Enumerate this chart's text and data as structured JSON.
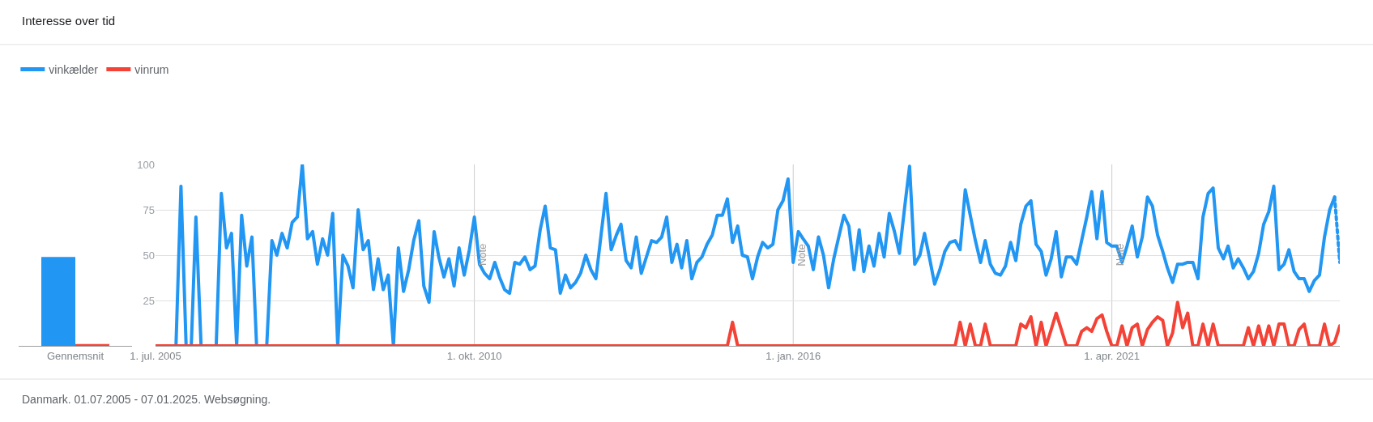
{
  "chart_data": [
    {
      "type": "bar",
      "title": "Interesse over tid",
      "categories": [
        "Gennemsnit"
      ],
      "ylim": [
        0,
        100
      ],
      "tick_labels": "x",
      "series": [
        {
          "color": "#2196f3",
          "values": [
            49
          ]
        },
        {
          "color": "#f44336",
          "values": [
            1
          ]
        }
      ]
    },
    {
      "type": "line",
      "legend": "top left",
      "grid": "y",
      "annotations": [
        "Danmark. 01.07.2005 - 07.01.2025. Websøgning."
      ],
      "xlim": [
        "2005-07-01",
        "2025-01-01"
      ],
      "ylim": [
        0,
        100
      ],
      "yticks": [
        25,
        50,
        75,
        100
      ],
      "xticks": [
        {
          "value": "2005-07-01",
          "label": "1. jul. 2005"
        },
        {
          "value": "2010-10-01",
          "label": "1. okt. 2010"
        },
        {
          "value": "2016-01-01",
          "label": "1. jan. 2016"
        },
        {
          "value": "2021-04-01",
          "label": "1. apr. 2021"
        }
      ],
      "ref_lines": [
        {
          "axis": "x",
          "value": "2010-10-01",
          "label": "Note",
          "color": "#cccccc"
        },
        {
          "axis": "x",
          "value": "2016-01-01",
          "label": "Note",
          "color": "#cccccc"
        },
        {
          "axis": "x",
          "value": "2021-04-01",
          "label": "Note",
          "color": "#cccccc"
        }
      ],
      "x": [
        "2005-07",
        "2005-08",
        "2005-09",
        "2005-10",
        "2005-11",
        "2005-12",
        "2006-01",
        "2006-02",
        "2006-03",
        "2006-04",
        "2006-05",
        "2006-06",
        "2006-07",
        "2006-08",
        "2006-09",
        "2006-10",
        "2006-11",
        "2006-12",
        "2007-01",
        "2007-02",
        "2007-03",
        "2007-04",
        "2007-05",
        "2007-06",
        "2007-07",
        "2007-08",
        "2007-09",
        "2007-10",
        "2007-11",
        "2007-12",
        "2008-01",
        "2008-02",
        "2008-03",
        "2008-04",
        "2008-05",
        "2008-06",
        "2008-07",
        "2008-08",
        "2008-09",
        "2008-10",
        "2008-11",
        "2008-12",
        "2009-01",
        "2009-02",
        "2009-03",
        "2009-04",
        "2009-05",
        "2009-06",
        "2009-07",
        "2009-08",
        "2009-09",
        "2009-10",
        "2009-11",
        "2009-12",
        "2010-01",
        "2010-02",
        "2010-03",
        "2010-04",
        "2010-05",
        "2010-06",
        "2010-07",
        "2010-08",
        "2010-09",
        "2010-10",
        "2010-11",
        "2010-12",
        "2011-01",
        "2011-02",
        "2011-03",
        "2011-04",
        "2011-05",
        "2011-06",
        "2011-07",
        "2011-08",
        "2011-09",
        "2011-10",
        "2011-11",
        "2011-12",
        "2012-01",
        "2012-02",
        "2012-03",
        "2012-04",
        "2012-05",
        "2012-06",
        "2012-07",
        "2012-08",
        "2012-09",
        "2012-10",
        "2012-11",
        "2012-12",
        "2013-01",
        "2013-02",
        "2013-03",
        "2013-04",
        "2013-05",
        "2013-06",
        "2013-07",
        "2013-08",
        "2013-09",
        "2013-10",
        "2013-11",
        "2013-12",
        "2014-01",
        "2014-02",
        "2014-03",
        "2014-04",
        "2014-05",
        "2014-06",
        "2014-07",
        "2014-08",
        "2014-09",
        "2014-10",
        "2014-11",
        "2014-12",
        "2015-01",
        "2015-02",
        "2015-03",
        "2015-04",
        "2015-05",
        "2015-06",
        "2015-07",
        "2015-08",
        "2015-09",
        "2015-10",
        "2015-11",
        "2015-12",
        "2016-01",
        "2016-02",
        "2016-03",
        "2016-04",
        "2016-05",
        "2016-06",
        "2016-07",
        "2016-08",
        "2016-09",
        "2016-10",
        "2016-11",
        "2016-12",
        "2017-01",
        "2017-02",
        "2017-03",
        "2017-04",
        "2017-05",
        "2017-06",
        "2017-07",
        "2017-08",
        "2017-09",
        "2017-10",
        "2017-11",
        "2017-12",
        "2018-01",
        "2018-02",
        "2018-03",
        "2018-04",
        "2018-05",
        "2018-06",
        "2018-07",
        "2018-08",
        "2018-09",
        "2018-10",
        "2018-11",
        "2018-12",
        "2019-01",
        "2019-02",
        "2019-03",
        "2019-04",
        "2019-05",
        "2019-06",
        "2019-07",
        "2019-08",
        "2019-09",
        "2019-10",
        "2019-11",
        "2019-12",
        "2020-01",
        "2020-02",
        "2020-03",
        "2020-04",
        "2020-05",
        "2020-06",
        "2020-07",
        "2020-08",
        "2020-09",
        "2020-10",
        "2020-11",
        "2020-12",
        "2021-01",
        "2021-02",
        "2021-03",
        "2021-04",
        "2021-05",
        "2021-06",
        "2021-07",
        "2021-08",
        "2021-09",
        "2021-10",
        "2021-11",
        "2021-12",
        "2022-01",
        "2022-02",
        "2022-03",
        "2022-04",
        "2022-05",
        "2022-06",
        "2022-07",
        "2022-08",
        "2022-09",
        "2022-10",
        "2022-11",
        "2022-12",
        "2023-01",
        "2023-02",
        "2023-03",
        "2023-04",
        "2023-05",
        "2023-06",
        "2023-07",
        "2023-08",
        "2023-09",
        "2023-10",
        "2023-11",
        "2023-12",
        "2024-01",
        "2024-02",
        "2024-03",
        "2024-04",
        "2024-05",
        "2024-06",
        "2024-07",
        "2024-08",
        "2024-09",
        "2024-10",
        "2024-11",
        "2024-12",
        "2025-01"
      ],
      "series": [
        {
          "name": "vinkælder",
          "color": "#2196f3",
          "values": [
            null,
            null,
            null,
            null,
            0,
            88,
            0,
            0,
            71,
            0,
            0,
            0,
            0,
            84,
            54,
            62,
            0,
            72,
            44,
            60,
            0,
            0,
            0,
            58,
            50,
            62,
            54,
            68,
            71,
            100,
            59,
            63,
            45,
            59,
            50,
            73,
            0,
            50,
            44,
            32,
            75,
            53,
            58,
            31,
            48,
            31,
            39,
            0,
            54,
            30,
            42,
            58,
            69,
            33,
            24,
            63,
            49,
            38,
            48,
            33,
            54,
            39,
            53,
            71,
            45,
            40,
            37,
            46,
            38,
            31,
            29,
            46,
            45,
            49,
            42,
            44,
            64,
            77,
            54,
            53,
            29,
            39,
            32,
            35,
            40,
            50,
            42,
            37,
            61,
            84,
            53,
            61,
            67,
            47,
            43,
            60,
            40,
            49,
            58,
            57,
            60,
            71,
            46,
            56,
            43,
            58,
            37,
            46,
            49,
            56,
            61,
            72,
            72,
            81,
            57,
            66,
            50,
            49,
            37,
            49,
            57,
            54,
            56,
            75,
            80,
            92,
            46,
            63,
            59,
            55,
            42,
            60,
            50,
            32,
            48,
            60,
            72,
            66,
            42,
            64,
            41,
            55,
            44,
            62,
            49,
            73,
            63,
            51,
            76,
            99,
            45,
            50,
            62,
            48,
            34,
            42,
            52,
            57,
            58,
            53,
            86,
            72,
            58,
            46,
            58,
            45,
            40,
            39,
            44,
            57,
            47,
            67,
            77,
            80,
            56,
            52,
            39,
            48,
            63,
            38,
            49,
            49,
            45,
            58,
            71,
            85,
            59,
            85,
            57,
            55,
            55,
            46,
            55,
            66,
            49,
            60,
            82,
            77,
            61,
            52,
            43,
            35,
            45,
            45,
            46,
            46,
            37,
            71,
            84,
            87,
            54,
            48,
            55,
            43,
            48,
            43,
            37,
            41,
            51,
            67,
            74,
            88,
            42,
            45,
            53,
            41,
            37,
            37,
            30,
            36,
            39,
            60,
            75,
            82,
            null
          ]
        },
        {
          "name": "vinrum",
          "color": "#f44336",
          "values": [
            0,
            0,
            0,
            0,
            0,
            0,
            0,
            0,
            0,
            0,
            0,
            0,
            0,
            0,
            0,
            0,
            0,
            0,
            0,
            0,
            0,
            0,
            0,
            0,
            0,
            0,
            0,
            0,
            0,
            0,
            0,
            0,
            0,
            0,
            0,
            0,
            0,
            0,
            0,
            0,
            0,
            0,
            0,
            0,
            0,
            0,
            0,
            0,
            0,
            0,
            0,
            0,
            0,
            0,
            0,
            0,
            0,
            0,
            0,
            0,
            0,
            0,
            0,
            0,
            0,
            0,
            0,
            0,
            0,
            0,
            0,
            0,
            0,
            0,
            0,
            0,
            0,
            0,
            0,
            0,
            0,
            0,
            0,
            0,
            0,
            0,
            0,
            0,
            0,
            0,
            0,
            0,
            0,
            0,
            0,
            0,
            0,
            0,
            0,
            0,
            0,
            0,
            0,
            0,
            0,
            0,
            0,
            0,
            0,
            0,
            0,
            0,
            0,
            0,
            13,
            0,
            0,
            0,
            0,
            0,
            0,
            0,
            0,
            0,
            0,
            0,
            0,
            0,
            0,
            0,
            0,
            0,
            0,
            0,
            0,
            0,
            0,
            0,
            0,
            0,
            0,
            0,
            0,
            0,
            0,
            0,
            0,
            0,
            0,
            0,
            0,
            0,
            0,
            0,
            0,
            0,
            0,
            0,
            0,
            13,
            0,
            12,
            0,
            0,
            12,
            0,
            0,
            0,
            0,
            0,
            0,
            12,
            10,
            16,
            0,
            13,
            0,
            9,
            18,
            9,
            0,
            0,
            0,
            8,
            10,
            8,
            15,
            17,
            8,
            0,
            0,
            11,
            0,
            10,
            12,
            0,
            9,
            13,
            16,
            14,
            0,
            7,
            24,
            10,
            18,
            0,
            0,
            12,
            0,
            12,
            0,
            0,
            0,
            0,
            0,
            0,
            10,
            0,
            11,
            0,
            11,
            0,
            12,
            12,
            0,
            0,
            9,
            12,
            0,
            0,
            0,
            12,
            0,
            2,
            11
          ]
        },
        {
          "color": "#2196f3",
          "line_style": "dotted",
          "x": [
            "2024-12",
            "2025-01"
          ],
          "values": [
            82,
            46
          ]
        }
      ]
    }
  ]
}
